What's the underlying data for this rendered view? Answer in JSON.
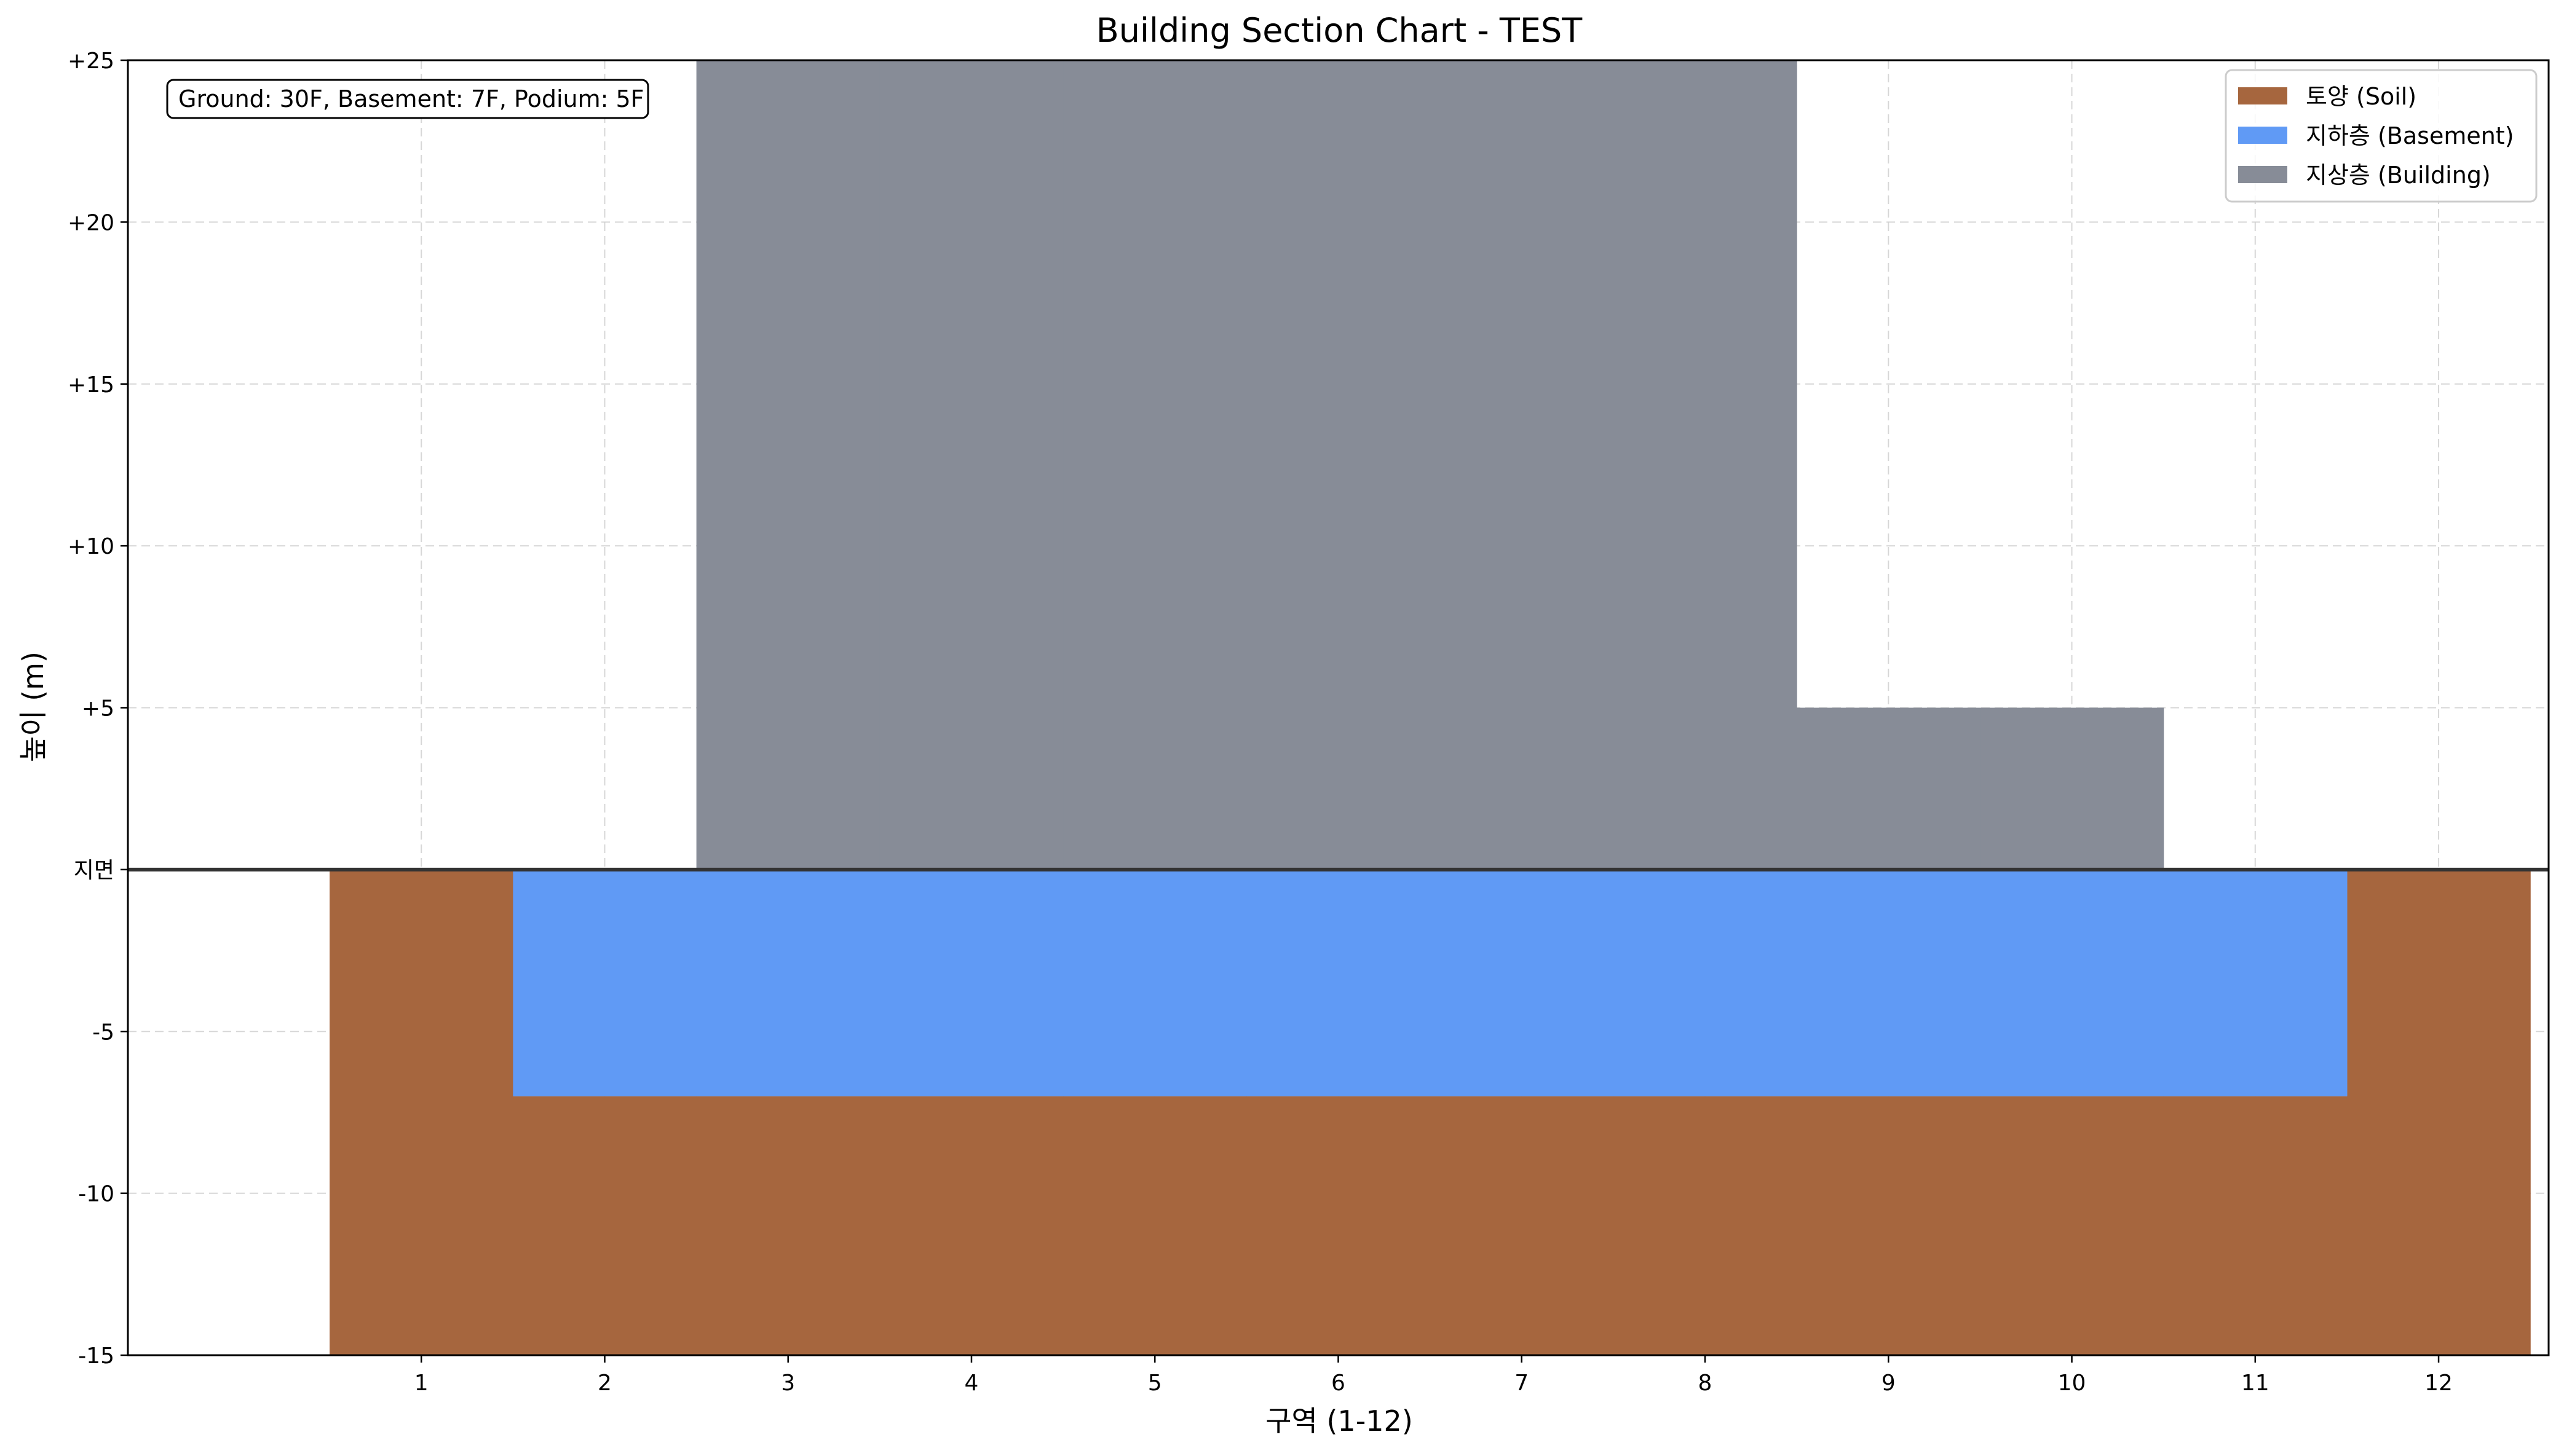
{
  "chart_data": {
    "type": "bar",
    "title": "Building Section Chart - TEST",
    "xlabel": "구역 (1-12)",
    "ylabel": "높이 (m)",
    "annotation": "Ground: 30F, Basement: 7F, Podium: 5F",
    "xlim": [
      -0.6,
      12.6
    ],
    "ylim": [
      -15,
      25
    ],
    "grid": true,
    "legend_position": "top-right",
    "categories": [
      1,
      2,
      3,
      4,
      5,
      6,
      7,
      8,
      9,
      10,
      11,
      12
    ],
    "x_tick_labels": [
      "1",
      "2",
      "3",
      "4",
      "5",
      "6",
      "7",
      "8",
      "9",
      "10",
      "11",
      "12"
    ],
    "y_ticks": [
      {
        "value": 25,
        "label": "+25"
      },
      {
        "value": 20,
        "label": "+20"
      },
      {
        "value": 15,
        "label": "+15"
      },
      {
        "value": 10,
        "label": "+10"
      },
      {
        "value": 5,
        "label": "+5"
      },
      {
        "value": 0,
        "label": "지면"
      },
      {
        "value": -5,
        "label": "-5"
      },
      {
        "value": -10,
        "label": "-10"
      },
      {
        "value": -15,
        "label": "-15"
      }
    ],
    "ground_level": 0,
    "series": [
      {
        "name": "토양 (Soil)",
        "color": "#a6663e",
        "bottom": [
          -15,
          -15,
          -15,
          -15,
          -15,
          -15,
          -15,
          -15,
          -15,
          -15,
          -15,
          -15
        ],
        "top": [
          0,
          -7,
          -7,
          -7,
          -7,
          -7,
          -7,
          -7,
          -7,
          -7,
          -7,
          0
        ]
      },
      {
        "name": "지하층 (Basement)",
        "color": "#609af5",
        "bottom": [
          null,
          -7,
          -7,
          -7,
          -7,
          -7,
          -7,
          -7,
          -7,
          -7,
          -7,
          null
        ],
        "top": [
          null,
          0,
          0,
          0,
          0,
          0,
          0,
          0,
          0,
          0,
          0,
          null
        ]
      },
      {
        "name": "지상층 (Building)",
        "color": "#878c97",
        "bottom": [
          null,
          null,
          0,
          0,
          0,
          0,
          0,
          0,
          0,
          0,
          null,
          null
        ],
        "top": [
          null,
          null,
          25,
          25,
          25,
          25,
          25,
          25,
          5,
          5,
          null,
          null
        ]
      }
    ]
  }
}
